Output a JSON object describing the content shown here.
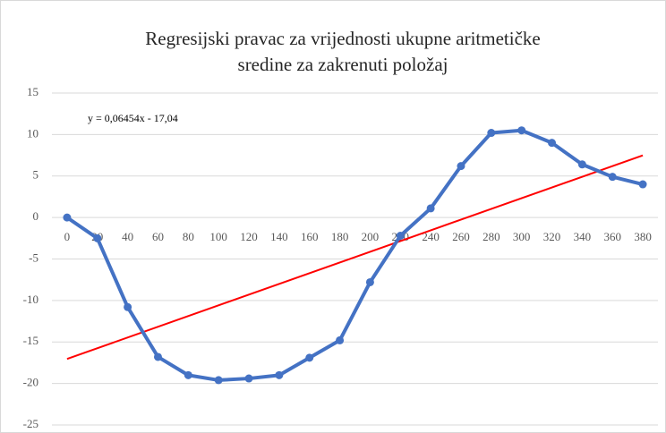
{
  "chart_data": {
    "type": "line",
    "title": [
      "Regresijski pravac za vrijednosti ukupne aritmetičke",
      "sredine za zakrenuti položaj"
    ],
    "annotation": "y = 0,06454x - 17,04",
    "x": [
      0,
      20,
      40,
      60,
      80,
      100,
      120,
      140,
      160,
      180,
      200,
      220,
      240,
      260,
      280,
      300,
      320,
      340,
      360,
      380
    ],
    "series": [
      {
        "color": "#4472c4",
        "values": [
          0,
          -2.5,
          -10.8,
          -16.8,
          -19,
          -19.6,
          -19.4,
          -19,
          -16.9,
          -14.8,
          -7.8,
          -2.2,
          1.1,
          6.2,
          10.2,
          10.5,
          9,
          6.4,
          4.9,
          4
        ]
      }
    ],
    "trendline": {
      "color": "#ff0000",
      "x": [
        0,
        380
      ],
      "values": [
        -17.04,
        7.49
      ]
    },
    "xlim": [
      -10,
      390
    ],
    "xticks": [
      0,
      20,
      40,
      60,
      80,
      100,
      120,
      140,
      160,
      180,
      200,
      220,
      240,
      260,
      280,
      300,
      320,
      340,
      360,
      380
    ],
    "ylim": [
      -25,
      15
    ],
    "yticks": [
      -25,
      -20,
      -15,
      -10,
      -5,
      0,
      5,
      10,
      15
    ],
    "grid": true
  }
}
